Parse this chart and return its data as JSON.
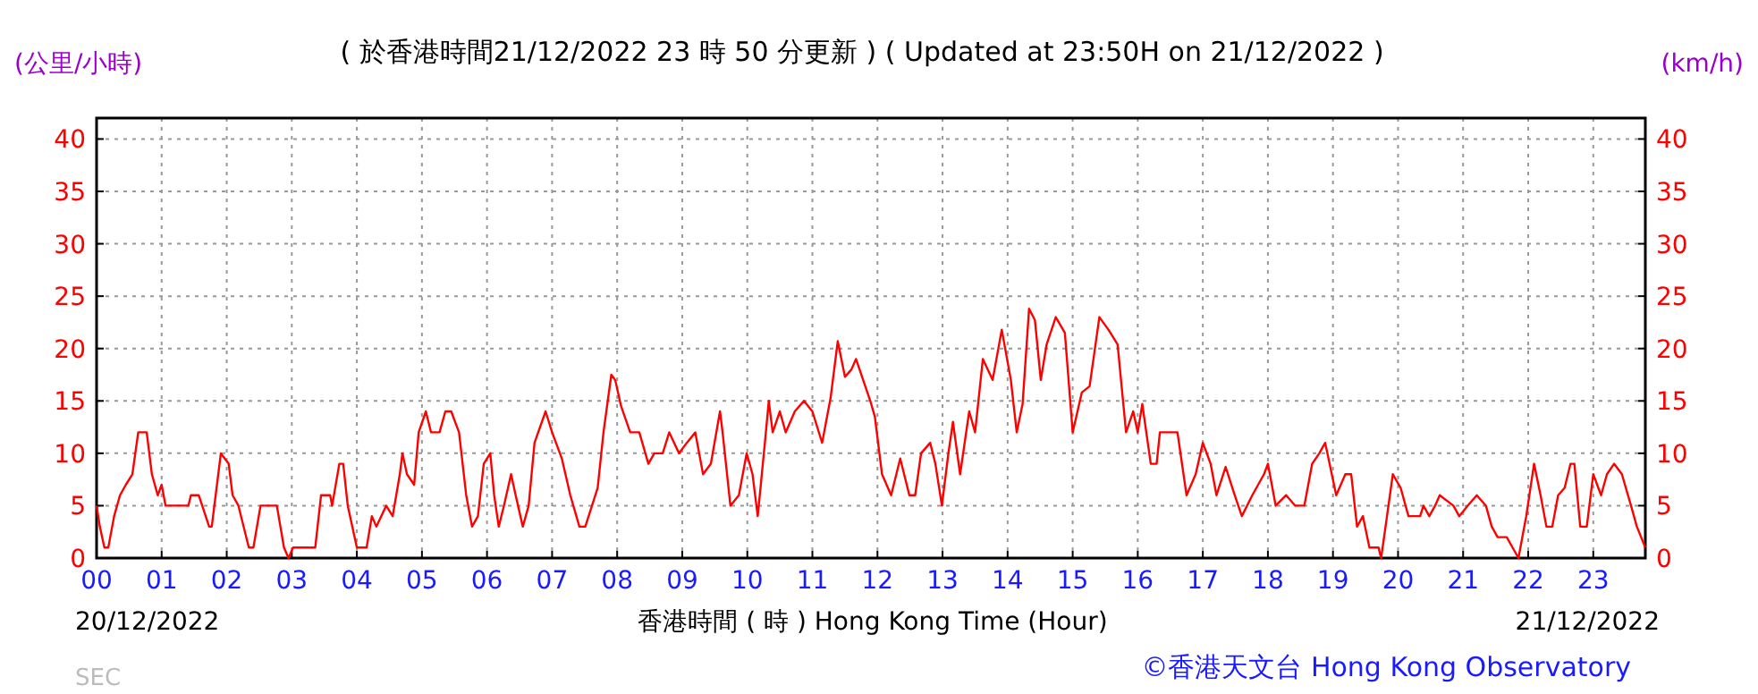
{
  "chart_data": {
    "type": "line",
    "title": "( 於香港時間21/12/2022 23 時 50 分更新 ) ( Updated at 23:50H on 21/12/2022 )",
    "xlabel": "香港時間 ( 時 ) Hong Kong Time (Hour)",
    "ylabel": "(公里/小時)",
    "y2label": "(km/h)",
    "annotations": [
      "20/12/2022",
      "21/12/2022",
      "SEC",
      "©香港天文台 Hong Kong Observatory"
    ],
    "xlim": [
      0,
      23.8
    ],
    "ylim": [
      0,
      42
    ],
    "y2lim": [
      0,
      42
    ],
    "xticks": [
      {
        "value": 0,
        "label": "00"
      },
      {
        "value": 1,
        "label": "01"
      },
      {
        "value": 2,
        "label": "02"
      },
      {
        "value": 3,
        "label": "03"
      },
      {
        "value": 4,
        "label": "04"
      },
      {
        "value": 5,
        "label": "05"
      },
      {
        "value": 6,
        "label": "06"
      },
      {
        "value": 7,
        "label": "07"
      },
      {
        "value": 8,
        "label": "08"
      },
      {
        "value": 9,
        "label": "09"
      },
      {
        "value": 10,
        "label": "10"
      },
      {
        "value": 11,
        "label": "11"
      },
      {
        "value": 12,
        "label": "12"
      },
      {
        "value": 13,
        "label": "13"
      },
      {
        "value": 14,
        "label": "14"
      },
      {
        "value": 15,
        "label": "15"
      },
      {
        "value": 16,
        "label": "16"
      },
      {
        "value": 17,
        "label": "17"
      },
      {
        "value": 18,
        "label": "18"
      },
      {
        "value": 19,
        "label": "19"
      },
      {
        "value": 20,
        "label": "20"
      },
      {
        "value": 21,
        "label": "21"
      },
      {
        "value": 22,
        "label": "22"
      },
      {
        "value": 23,
        "label": "23"
      }
    ],
    "yticks": [
      0,
      5,
      10,
      15,
      20,
      25,
      30,
      35,
      40
    ],
    "y2ticks": [
      0,
      5,
      10,
      15,
      20,
      25,
      30,
      35,
      40
    ],
    "grid": true,
    "line_style": "solid",
    "marker": "none",
    "series": [
      {
        "color": "#ff0000",
        "x": [
          0,
          0.05,
          0.12,
          0.18,
          0.27,
          0.36,
          0.45,
          0.55,
          0.64,
          0.77,
          0.85,
          0.94,
          1.0,
          1.06,
          1.41,
          1.45,
          1.57,
          1.73,
          1.77,
          1.91,
          2.03,
          2.09,
          2.18,
          2.34,
          2.41,
          2.52,
          2.77,
          2.88,
          2.95,
          3.02,
          3.36,
          3.45,
          3.59,
          3.62,
          3.73,
          3.79,
          3.86,
          4.0,
          4.15,
          4.23,
          4.3,
          4.45,
          4.55,
          4.66,
          4.7,
          4.77,
          4.88,
          4.95,
          5.06,
          5.14,
          5.27,
          5.36,
          5.45,
          5.57,
          5.68,
          5.77,
          5.86,
          5.95,
          6.05,
          6.11,
          6.18,
          6.26,
          6.37,
          6.44,
          6.55,
          6.64,
          6.73,
          6.9,
          7.0,
          7.15,
          7.28,
          7.42,
          7.51,
          7.7,
          7.79,
          7.91,
          7.97,
          8.06,
          8.2,
          8.34,
          8.48,
          8.57,
          8.7,
          8.8,
          8.95,
          9.07,
          9.2,
          9.32,
          9.44,
          9.58,
          9.62,
          9.74,
          9.87,
          9.99,
          10.08,
          10.16,
          10.27,
          10.33,
          10.39,
          10.5,
          10.59,
          10.73,
          10.87,
          11.0,
          11.15,
          11.28,
          11.39,
          11.5,
          11.6,
          11.67,
          11.78,
          11.89,
          11.96,
          12.07,
          12.21,
          12.35,
          12.49,
          12.58,
          12.67,
          12.81,
          12.89,
          12.99,
          13.09,
          13.16,
          13.27,
          13.41,
          13.5,
          13.62,
          13.77,
          13.91,
          14.05,
          14.14,
          14.23,
          14.33,
          14.42,
          14.51,
          14.6,
          14.74,
          14.88,
          15.0,
          15.14,
          15.26,
          15.41,
          15.55,
          15.69,
          15.82,
          15.93,
          16.0,
          16.07,
          16.2,
          16.29,
          16.34,
          16.61,
          16.75,
          16.89,
          17.0,
          17.12,
          17.21,
          17.35,
          17.49,
          17.6,
          17.76,
          17.94,
          18.0,
          18.12,
          18.28,
          18.42,
          18.56,
          18.68,
          18.79,
          18.88,
          19.05,
          19.19,
          19.28,
          19.37,
          19.46,
          19.56,
          19.7,
          19.74,
          19.83,
          19.92,
          20.04,
          20.16,
          20.34,
          20.39,
          20.48,
          20.57,
          20.64,
          20.85,
          20.94,
          21.07,
          21.21,
          21.35,
          21.44,
          21.53,
          21.67,
          21.76,
          21.85,
          21.97,
          22.09,
          22.19,
          22.28,
          22.37,
          22.46,
          22.56,
          22.65,
          22.71,
          22.8,
          22.9,
          23.0,
          23.12,
          23.21,
          23.32,
          23.44,
          23.58,
          23.67,
          23.8
        ],
        "values": [
          5,
          3,
          1,
          1,
          4,
          6,
          7,
          8,
          12,
          12,
          8,
          6,
          7,
          5,
          5,
          6,
          6,
          3,
          3,
          10,
          9,
          6,
          5,
          1,
          1,
          5,
          5,
          1,
          0,
          1,
          1,
          6,
          6,
          5,
          9,
          9,
          5,
          1,
          1,
          4,
          3,
          5,
          4,
          8,
          10,
          8,
          7,
          12,
          14,
          12,
          12,
          14,
          14,
          12,
          6,
          3,
          4,
          9,
          10,
          6,
          3,
          5,
          8,
          6,
          3,
          5,
          11,
          14,
          12,
          9.5,
          6,
          3,
          3,
          6.7,
          12,
          17.5,
          17,
          14.5,
          12,
          12,
          9,
          10,
          10,
          12,
          10,
          11,
          12,
          8,
          9,
          14,
          12,
          5,
          6,
          10,
          8,
          4,
          11,
          15,
          12,
          14,
          12,
          14,
          15,
          14,
          11,
          15.3,
          20.7,
          17.3,
          18,
          19,
          17,
          15,
          13.5,
          8,
          6,
          9.5,
          6,
          6,
          10,
          11,
          9,
          5,
          10,
          13,
          8,
          14,
          12,
          19,
          17,
          21.8,
          17,
          12,
          14.7,
          23.8,
          22.7,
          17,
          20.4,
          23,
          21.5,
          12,
          15.8,
          16.4,
          23,
          21.8,
          20.4,
          12,
          14,
          12,
          14.7,
          9,
          9,
          12,
          12,
          6,
          8,
          11,
          9,
          6,
          8.7,
          6,
          4,
          6,
          8,
          9,
          5,
          6,
          5,
          5,
          9,
          10,
          11,
          6,
          8,
          8,
          3,
          4,
          1,
          1,
          0,
          4,
          8,
          6.7,
          4,
          4,
          5,
          4,
          5,
          6,
          5,
          4,
          5,
          6,
          5,
          3,
          2,
          2,
          1,
          0,
          4,
          9,
          6,
          3,
          3,
          6,
          6.7,
          9,
          9,
          3,
          3,
          8,
          6,
          8,
          9,
          8,
          5,
          3,
          1
        ]
      }
    ]
  }
}
